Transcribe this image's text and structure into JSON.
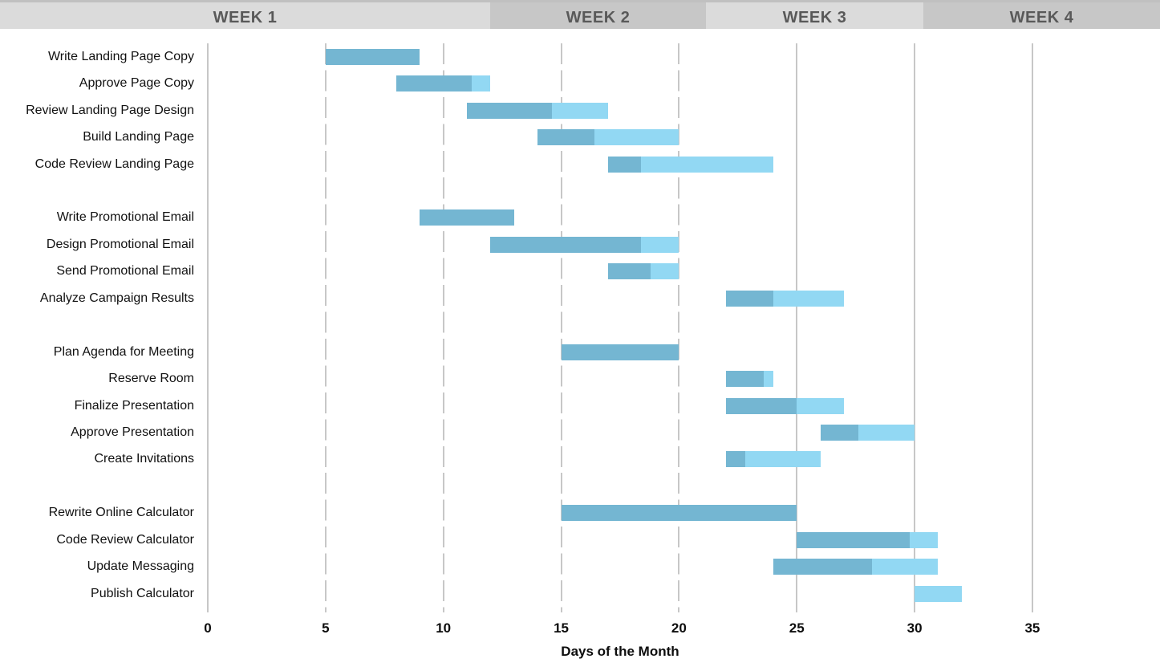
{
  "header": {
    "weeks": [
      {
        "label": "WEEK 1"
      },
      {
        "label": "WEEK 2"
      },
      {
        "label": "WEEK 3"
      },
      {
        "label": "WEEK 4"
      }
    ]
  },
  "chart_data": {
    "type": "bar",
    "subtype": "gantt",
    "title": "",
    "xlabel": "Days of the Month",
    "ylabel": "",
    "x_ticks": [
      0,
      5,
      10,
      15,
      20,
      25,
      30,
      35
    ],
    "xlim": [
      0,
      40
    ],
    "grid": "vertical, every 5 days; dashed through day 20, solid from day 25",
    "legend": "none",
    "bar_semantics": "darker segment = completed portion, lighter segment = remaining portion",
    "colors": {
      "completed": "#74b6d2",
      "remaining": "#92d8f3",
      "gridline": "#c7c7c7",
      "header_band_light": "#dbdbdb",
      "header_band_dark": "#c7c7c7",
      "header_text": "#595959"
    },
    "tasks": [
      {
        "name": "Write Landing Page Copy",
        "group": 1,
        "start": 5,
        "end": 9,
        "percent_complete": 100
      },
      {
        "name": "Approve Page Copy",
        "group": 1,
        "start": 8,
        "end": 12,
        "percent_complete": 80
      },
      {
        "name": "Review Landing Page Design",
        "group": 1,
        "start": 11,
        "end": 17,
        "percent_complete": 60
      },
      {
        "name": "Build Landing Page",
        "group": 1,
        "start": 14,
        "end": 20,
        "percent_complete": 40
      },
      {
        "name": "Code Review Landing Page",
        "group": 1,
        "start": 17,
        "end": 24,
        "percent_complete": 20
      },
      {
        "name": "Write Promotional Email",
        "group": 2,
        "start": 9,
        "end": 13,
        "percent_complete": 100
      },
      {
        "name": "Design Promotional Email",
        "group": 2,
        "start": 12,
        "end": 20,
        "percent_complete": 80
      },
      {
        "name": "Send Promotional Email",
        "group": 2,
        "start": 17,
        "end": 20,
        "percent_complete": 60
      },
      {
        "name": "Analyze Campaign Results",
        "group": 2,
        "start": 22,
        "end": 27,
        "percent_complete": 40
      },
      {
        "name": "Plan Agenda for Meeting",
        "group": 3,
        "start": 15,
        "end": 20,
        "percent_complete": 100
      },
      {
        "name": "Reserve Room",
        "group": 3,
        "start": 22,
        "end": 24,
        "percent_complete": 80
      },
      {
        "name": "Finalize Presentation",
        "group": 3,
        "start": 22,
        "end": 27,
        "percent_complete": 60
      },
      {
        "name": "Approve Presentation",
        "group": 3,
        "start": 26,
        "end": 30,
        "percent_complete": 40
      },
      {
        "name": "Create Invitations",
        "group": 3,
        "start": 22,
        "end": 26,
        "percent_complete": 20
      },
      {
        "name": "Rewrite Online Calculator",
        "group": 4,
        "start": 15,
        "end": 25,
        "percent_complete": 100
      },
      {
        "name": "Code Review Calculator",
        "group": 4,
        "start": 25,
        "end": 31,
        "percent_complete": 80
      },
      {
        "name": "Update Messaging",
        "group": 4,
        "start": 24,
        "end": 31,
        "percent_complete": 60
      },
      {
        "name": "Publish Calculator",
        "group": 4,
        "start": 30,
        "end": 32,
        "percent_complete": 0
      }
    ]
  }
}
